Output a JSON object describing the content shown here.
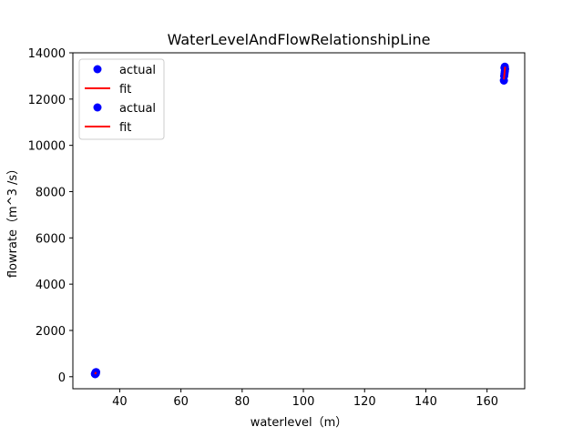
{
  "chart_data": {
    "type": "scatter",
    "title": "WaterLevelAndFlowRelationshipLine",
    "xlabel": "waterlevel（m）",
    "ylabel": "flowrate（m^3 /s）",
    "xlim": [
      24.7,
      172.3
    ],
    "ylim": [
      -520,
      14000
    ],
    "xticks": [
      40,
      60,
      80,
      100,
      120,
      140,
      160
    ],
    "yticks": [
      0,
      2000,
      4000,
      6000,
      8000,
      10000,
      12000,
      14000
    ],
    "grid": false,
    "legend_position": "top-left",
    "colors": {
      "actual": "#0000ff",
      "fit": "#ff0000"
    },
    "series": [
      {
        "name": "actual",
        "kind": "points",
        "x": [
          31.9,
          32.0,
          32.1,
          32.2,
          32.3,
          32.2,
          32.0
        ],
        "y": [
          120,
          150,
          170,
          190,
          200,
          140,
          110
        ]
      },
      {
        "name": "fit",
        "kind": "line",
        "x": [
          31.9,
          32.3
        ],
        "y": [
          110,
          200
        ]
      },
      {
        "name": "actual",
        "kind": "points",
        "x": [
          165.5,
          165.6,
          165.7,
          165.8,
          165.9,
          165.8,
          165.7
        ],
        "y": [
          12800,
          13000,
          13100,
          13200,
          13300,
          13400,
          13350
        ]
      },
      {
        "name": "fit",
        "kind": "line",
        "x": [
          165.5,
          165.9
        ],
        "y": [
          12850,
          13400
        ]
      }
    ],
    "legend": [
      "actual",
      "fit",
      "actual",
      "fit"
    ]
  }
}
